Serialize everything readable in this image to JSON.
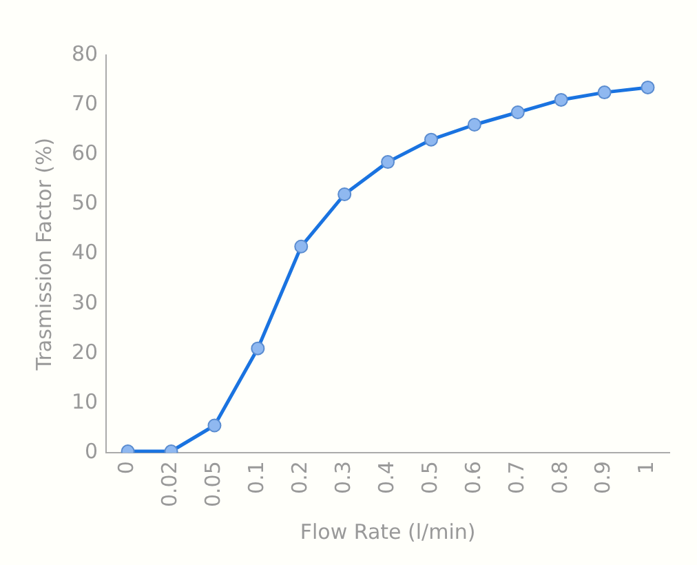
{
  "chart_data": {
    "type": "line",
    "xlabel": "Flow Rate (l/min)",
    "ylabel": "Trasmission Factor (%)",
    "categories": [
      "0",
      "0.02",
      "0.05",
      "0.1",
      "0.2",
      "0.3",
      "0.4",
      "0.5",
      "0.6",
      "0.7",
      "0.8",
      "0.9",
      "1"
    ],
    "series": [
      {
        "color": "#1a73e0",
        "values": [
          0.3,
          0.3,
          5.5,
          21,
          41.5,
          52,
          58.5,
          63,
          66,
          68.5,
          71,
          72.5,
          73.5
        ]
      }
    ],
    "ylim": [
      0,
      80
    ],
    "yticks": [
      0,
      10,
      20,
      30,
      40,
      50,
      60,
      70,
      80
    ],
    "grid": false,
    "legend": false,
    "marker": "circle",
    "line_style": "solid"
  }
}
